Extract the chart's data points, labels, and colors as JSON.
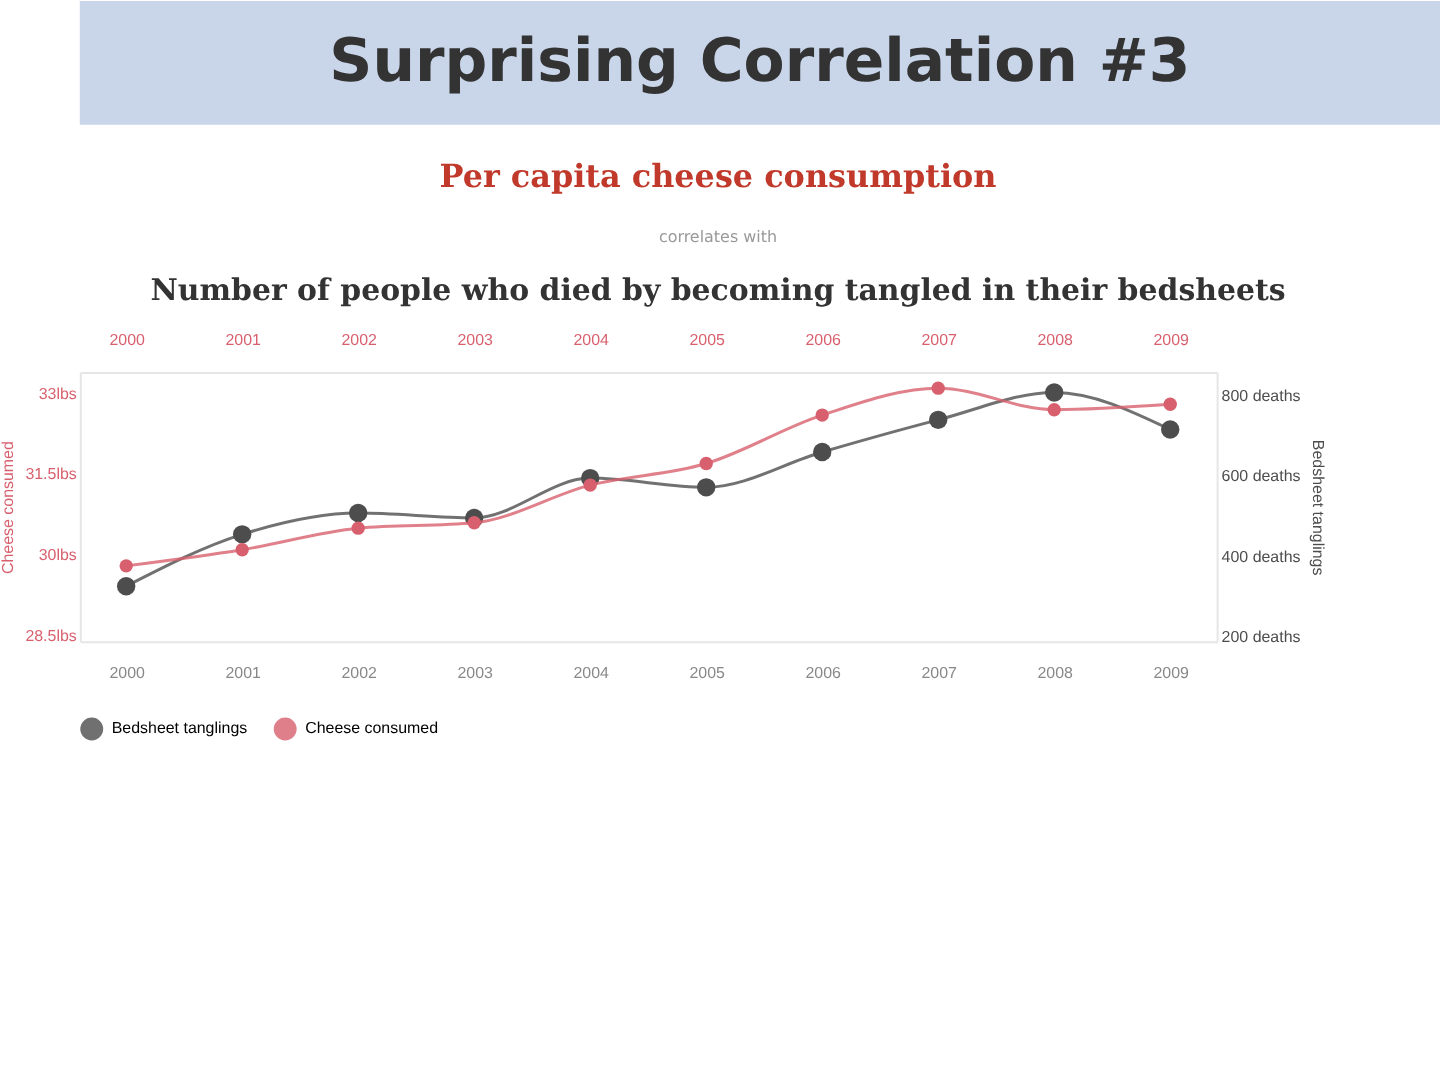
{
  "chart_data": {
    "type": "line",
    "title": "Per capita cheese consumption",
    "subtitle": "correlates with",
    "annotations": [
      "Surprising Correlation #3",
      "Number of people who died by becoming tangled in their bedsheets"
    ],
    "x": [
      2000,
      2001,
      2002,
      2003,
      2004,
      2005,
      2006,
      2007,
      2008,
      2009
    ],
    "xlim": [
      1999.6,
      2009.4
    ],
    "xticks": [
      2000,
      2001,
      2002,
      2003,
      2004,
      2005,
      2006,
      2007,
      2008,
      2009
    ],
    "x2lim": [
      1999.6,
      2009.4
    ],
    "x2ticks": [
      2000,
      2001,
      2002,
      2003,
      2004,
      2005,
      2006,
      2007,
      2008,
      2009
    ],
    "series": [
      {
        "name": "Bedsheet tanglings",
        "color": "#4d4d4d",
        "axis": "y2",
        "values": [
          327,
          456,
          509,
          497,
          596,
          573,
          661,
          741,
          809,
          717
        ]
      },
      {
        "name": "Cheese consumed",
        "color": "#d8606e",
        "values": [
          29.8,
          30.1,
          30.5,
          30.6,
          31.3,
          31.7,
          32.6,
          33.1,
          32.7,
          32.8
        ]
      }
    ],
    "ylabel": "Cheese consumed",
    "y2label": "Bedsheet tanglings",
    "ylim": [
      28.4,
      33.4
    ],
    "yticks": [
      {
        "value": 28.5,
        "label": "28.5lbs"
      },
      {
        "value": 30,
        "label": "30lbs"
      },
      {
        "value": 31.5,
        "label": "31.5lbs"
      },
      {
        "value": 33,
        "label": "33lbs"
      }
    ],
    "y2lim": [
      190,
      860
    ],
    "y2ticks": [
      {
        "value": 200,
        "label": "200 deaths"
      },
      {
        "value": 400,
        "label": "400 deaths"
      },
      {
        "value": 600,
        "label": "600 deaths"
      },
      {
        "value": 800,
        "label": "800 deaths"
      }
    ],
    "grid": false,
    "legend": "bottom",
    "marker": "circle",
    "line_style": "solid"
  }
}
